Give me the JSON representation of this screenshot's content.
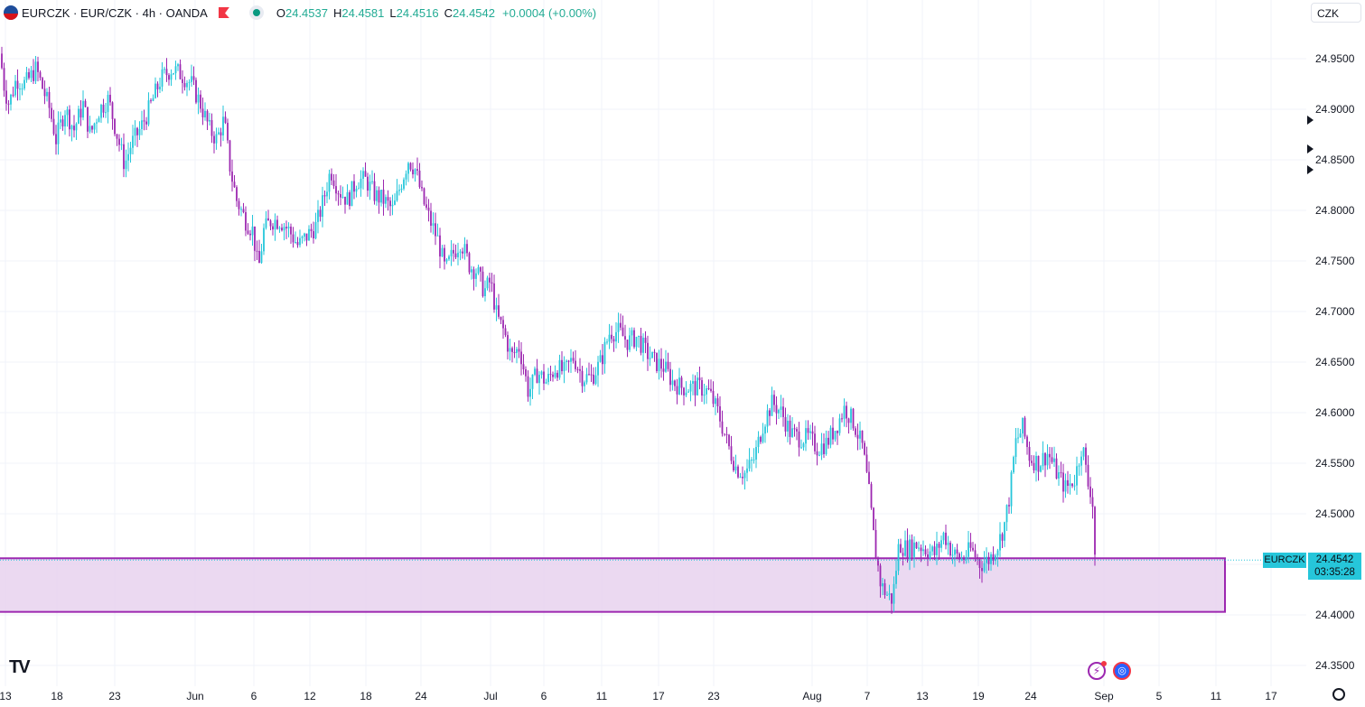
{
  "legend": {
    "symbol": "EURCZK · EUR/CZK · 4h · OANDA",
    "o_label": "O",
    "o_value": "24.4537",
    "h_label": "H",
    "h_value": "24.4581",
    "l_label": "L",
    "l_value": "24.4516",
    "c_label": "C",
    "c_value": "24.4542",
    "change": "+0.0004 (+0.00%)"
  },
  "currency_button": "CZK",
  "price_tag": {
    "symbol": "EURCZK",
    "price": "24.4542",
    "countdown": "03:35:28"
  },
  "colors": {
    "up": "#26c6da",
    "down": "#9c27b0",
    "zone_fill": "#e9d5ef",
    "zone_border": "#9c27b0",
    "tag": "#26c6da"
  },
  "icons": [
    "tradingview-logo-icon",
    "bolt-icon",
    "globe-icon",
    "gear-icon",
    "flag-icon",
    "alert-icon",
    "eye-icon"
  ],
  "chart_data": {
    "type": "candlestick",
    "y_ticks": [
      24.35,
      24.4,
      24.45,
      24.5,
      24.55,
      24.6,
      24.65,
      24.7,
      24.75,
      24.8,
      24.85,
      24.9,
      24.95
    ],
    "ylim": [
      24.33,
      24.99
    ],
    "x_tick_labels": [
      "13",
      "18",
      "23",
      "Jun",
      "6",
      "12",
      "18",
      "24",
      "Jul",
      "6",
      "11",
      "17",
      "23",
      "Aug",
      "7",
      "13",
      "19",
      "24",
      "Sep",
      "5",
      "11",
      "17"
    ],
    "last_close": 24.4542,
    "zone": {
      "top": 24.456,
      "bottom": 24.403
    },
    "path": [
      [
        0,
        24.955
      ],
      [
        5,
        24.92
      ],
      [
        10,
        24.905
      ],
      [
        18,
        24.93
      ],
      [
        28,
        24.925
      ],
      [
        40,
        24.94
      ],
      [
        55,
        24.9
      ],
      [
        62,
        24.87
      ],
      [
        72,
        24.9
      ],
      [
        82,
        24.88
      ],
      [
        92,
        24.905
      ],
      [
        100,
        24.875
      ],
      [
        110,
        24.9
      ],
      [
        120,
        24.91
      ],
      [
        128,
        24.88
      ],
      [
        138,
        24.845
      ],
      [
        145,
        24.865
      ],
      [
        155,
        24.88
      ],
      [
        165,
        24.9
      ],
      [
        178,
        24.93
      ],
      [
        190,
        24.94
      ],
      [
        200,
        24.935
      ],
      [
        212,
        24.925
      ],
      [
        222,
        24.905
      ],
      [
        232,
        24.88
      ],
      [
        240,
        24.87
      ],
      [
        248,
        24.89
      ],
      [
        255,
        24.84
      ],
      [
        262,
        24.81
      ],
      [
        272,
        24.79
      ],
      [
        280,
        24.78
      ],
      [
        286,
        24.74
      ],
      [
        292,
        24.78
      ],
      [
        300,
        24.79
      ],
      [
        310,
        24.79
      ],
      [
        320,
        24.78
      ],
      [
        330,
        24.765
      ],
      [
        340,
        24.775
      ],
      [
        350,
        24.785
      ],
      [
        358,
        24.81
      ],
      [
        366,
        24.84
      ],
      [
        375,
        24.82
      ],
      [
        385,
        24.81
      ],
      [
        395,
        24.83
      ],
      [
        405,
        24.83
      ],
      [
        415,
        24.815
      ],
      [
        425,
        24.81
      ],
      [
        435,
        24.8
      ],
      [
        445,
        24.83
      ],
      [
        452,
        24.85
      ],
      [
        460,
        24.84
      ],
      [
        468,
        24.81
      ],
      [
        476,
        24.79
      ],
      [
        485,
        24.77
      ],
      [
        493,
        24.74
      ],
      [
        500,
        24.755
      ],
      [
        510,
        24.77
      ],
      [
        520,
        24.745
      ],
      [
        528,
        24.74
      ],
      [
        536,
        24.72
      ],
      [
        543,
        24.73
      ],
      [
        550,
        24.695
      ],
      [
        558,
        24.68
      ],
      [
        566,
        24.655
      ],
      [
        575,
        24.665
      ],
      [
        585,
        24.62
      ],
      [
        595,
        24.64
      ],
      [
        605,
        24.63
      ],
      [
        615,
        24.645
      ],
      [
        625,
        24.64
      ],
      [
        635,
        24.655
      ],
      [
        645,
        24.635
      ],
      [
        655,
        24.635
      ],
      [
        665,
        24.65
      ],
      [
        675,
        24.68
      ],
      [
        685,
        24.68
      ],
      [
        695,
        24.67
      ],
      [
        705,
        24.675
      ],
      [
        715,
        24.66
      ],
      [
        725,
        24.65
      ],
      [
        735,
        24.645
      ],
      [
        745,
        24.63
      ],
      [
        755,
        24.625
      ],
      [
        765,
        24.625
      ],
      [
        775,
        24.625
      ],
      [
        785,
        24.62
      ],
      [
        795,
        24.6
      ],
      [
        805,
        24.57
      ],
      [
        815,
        24.545
      ],
      [
        825,
        24.54
      ],
      [
        835,
        24.555
      ],
      [
        845,
        24.59
      ],
      [
        855,
        24.61
      ],
      [
        865,
        24.6
      ],
      [
        875,
        24.58
      ],
      [
        885,
        24.575
      ],
      [
        895,
        24.575
      ],
      [
        905,
        24.565
      ],
      [
        915,
        24.57
      ],
      [
        925,
        24.585
      ],
      [
        935,
        24.605
      ],
      [
        945,
        24.59
      ],
      [
        955,
        24.565
      ],
      [
        962,
        24.52
      ],
      [
        968,
        24.47
      ],
      [
        975,
        24.43
      ],
      [
        982,
        24.42
      ],
      [
        988,
        24.415
      ],
      [
        995,
        24.47
      ],
      [
        1005,
        24.465
      ],
      [
        1015,
        24.47
      ],
      [
        1025,
        24.465
      ],
      [
        1035,
        24.46
      ],
      [
        1045,
        24.48
      ],
      [
        1055,
        24.46
      ],
      [
        1065,
        24.455
      ],
      [
        1075,
        24.465
      ],
      [
        1085,
        24.45
      ],
      [
        1095,
        24.455
      ],
      [
        1105,
        24.47
      ],
      [
        1112,
        24.49
      ],
      [
        1118,
        24.52
      ],
      [
        1124,
        24.57
      ],
      [
        1132,
        24.585
      ],
      [
        1140,
        24.555
      ],
      [
        1150,
        24.55
      ],
      [
        1160,
        24.56
      ],
      [
        1170,
        24.54
      ],
      [
        1180,
        24.525
      ],
      [
        1190,
        24.535
      ],
      [
        1198,
        24.57
      ],
      [
        1204,
        24.53
      ],
      [
        1209,
        24.52
      ],
      [
        1212,
        24.46
      ],
      [
        1214,
        24.455
      ]
    ]
  }
}
